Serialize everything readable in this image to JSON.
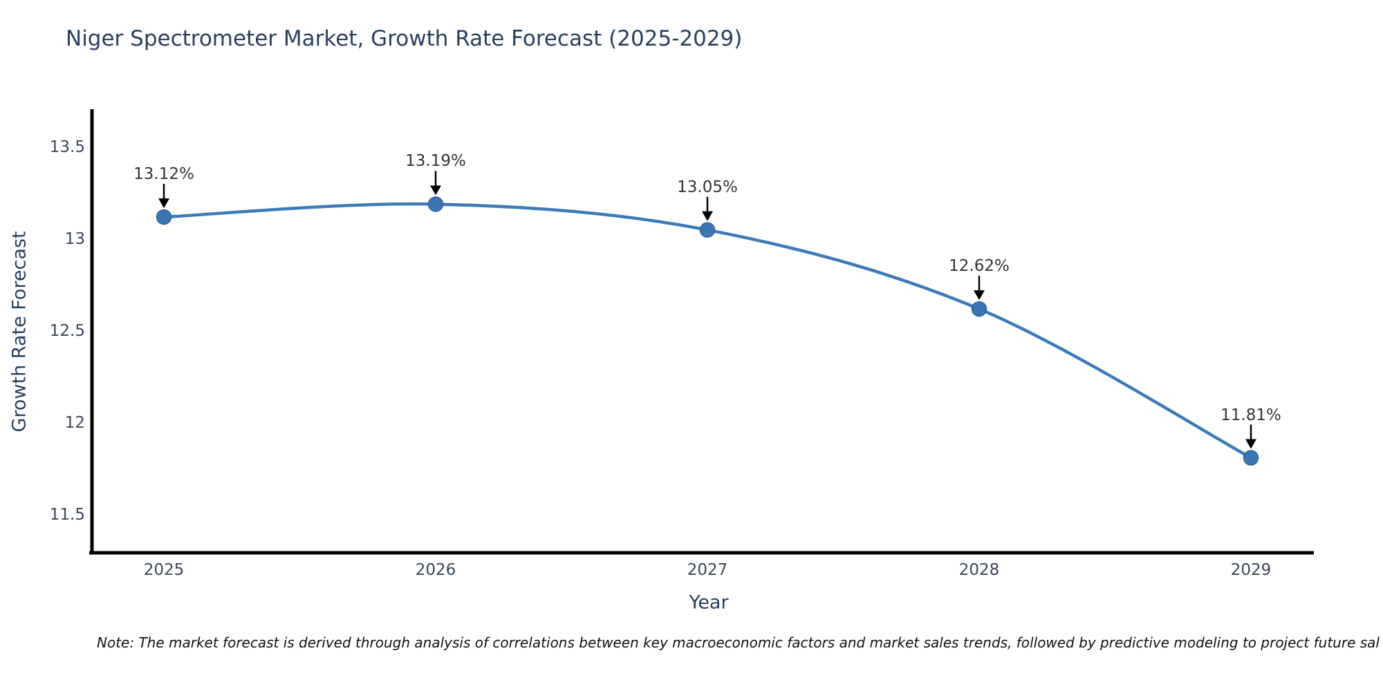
{
  "title": "Niger Spectrometer Market, Growth Rate Forecast (2025-2029)",
  "note": "Note: The market forecast is derived through analysis of correlations between key macroeconomic factors and market sales trends, followed by predictive modeling to project future sal",
  "chart_data": {
    "type": "line",
    "title": "Niger Spectrometer Market, Growth Rate Forecast (2025-2029)",
    "xlabel": "Year",
    "ylabel": "Growth Rate Forecast",
    "x": [
      2025,
      2026,
      2027,
      2028,
      2029
    ],
    "y": [
      13.12,
      13.19,
      13.05,
      12.62,
      11.81
    ],
    "point_labels": [
      "13.12%",
      "13.19%",
      "13.05%",
      "12.62%",
      "11.81%"
    ],
    "yticks": [
      13.5,
      13,
      12.5,
      12,
      11.5
    ],
    "ylim": [
      11.3,
      13.7
    ],
    "line_shape": "spline",
    "grid": false,
    "legend": "none",
    "annotation_style": "label-above-with-down-arrow",
    "colors": {
      "line": "#3d7ab8",
      "marker_fill": "#3a76b4",
      "marker_edge": "#2f6396",
      "axis": "#000000",
      "title_text": "#2a3f5f",
      "tick_text": "#3b4656",
      "annotation_text": "#333333",
      "arrow": "#000000"
    }
  }
}
